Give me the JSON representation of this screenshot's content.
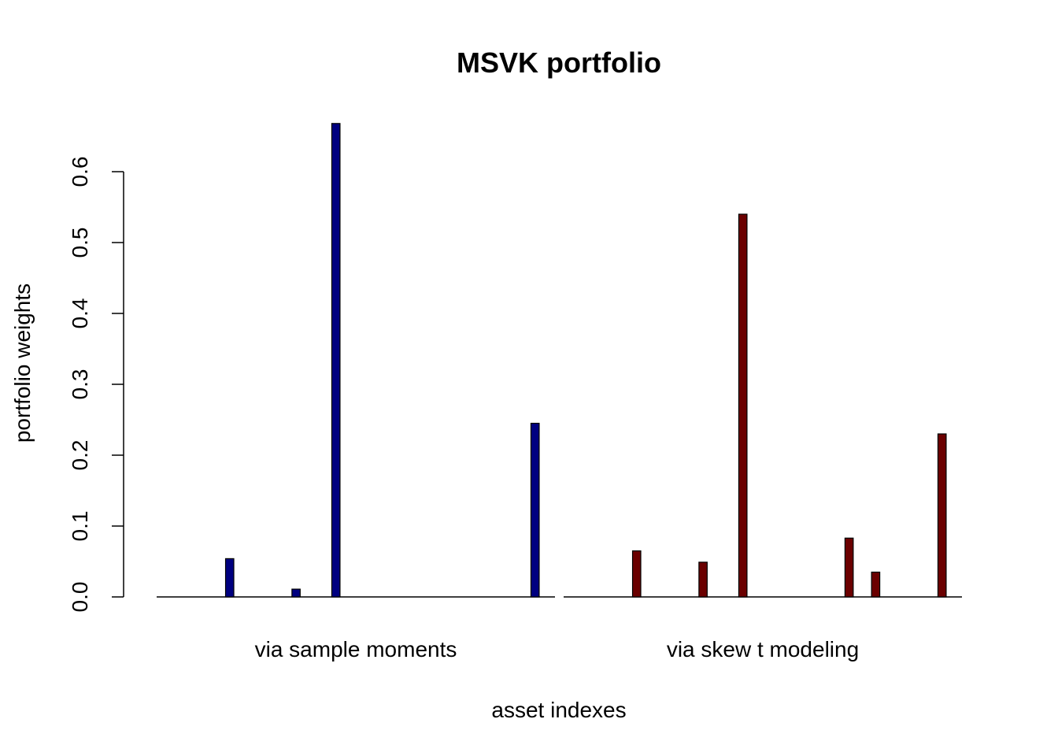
{
  "chart_data": {
    "type": "bar",
    "title": "MSVK portfolio",
    "xlabel": "asset indexes",
    "ylabel": "portfolio weights",
    "ylim": [
      0,
      0.67
    ],
    "yticks": [
      "0.0",
      "0.1",
      "0.2",
      "0.3",
      "0.4",
      "0.5",
      "0.6"
    ],
    "ytick_values": [
      0,
      0.1,
      0.2,
      0.3,
      0.4,
      0.5,
      0.6
    ],
    "grid": false,
    "legend": "none",
    "asset_count": 30,
    "groups": [
      {
        "label": "via sample moments",
        "color": "#000080",
        "weights": [
          0,
          0,
          0,
          0,
          0,
          0.054,
          0,
          0,
          0,
          0,
          0.011,
          0,
          0,
          0.668,
          0,
          0,
          0,
          0,
          0,
          0,
          0,
          0,
          0,
          0,
          0,
          0,
          0,
          0,
          0.245,
          0
        ]
      },
      {
        "label": "via skew t modeling",
        "color": "#6b0000",
        "weights": [
          0,
          0,
          0,
          0,
          0,
          0.065,
          0,
          0,
          0,
          0,
          0.049,
          0,
          0,
          0.54,
          0,
          0,
          0,
          0,
          0,
          0,
          0,
          0.083,
          0,
          0.035,
          0,
          0,
          0,
          0,
          0.23,
          0
        ]
      }
    ]
  }
}
